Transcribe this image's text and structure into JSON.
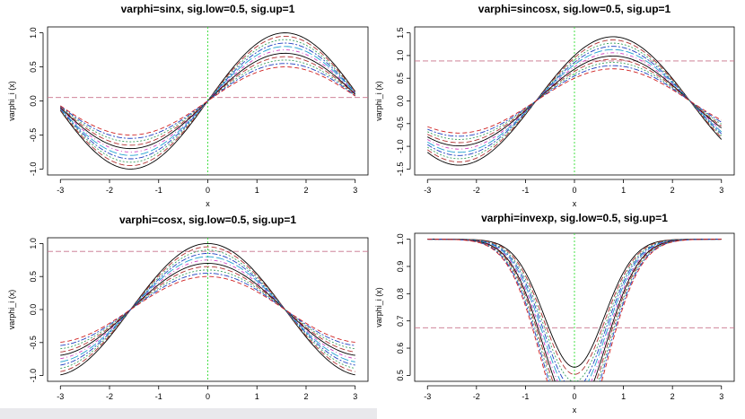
{
  "chart_data": [
    {
      "type": "line",
      "func": "sin",
      "title": "varphi=sinx, sig.low=0.5, sig.up=1",
      "xlabel": "x",
      "ylabel": "varphi_i (x)",
      "xlim": [
        -3,
        3
      ],
      "ylim": [
        -1.0,
        1.0
      ],
      "xticks": [
        "-3",
        "-2",
        "-1",
        "0",
        "1",
        "2",
        "3"
      ],
      "yticks": [
        "-1.0",
        "-0.5",
        "0.0",
        "0.5",
        "1.0"
      ],
      "hline": 0.05,
      "vline": 0,
      "sigmas": [
        1.0,
        0.95,
        0.9,
        0.85,
        0.8,
        0.75,
        0.7,
        0.65,
        0.6,
        0.55,
        0.5
      ]
    },
    {
      "type": "line",
      "func": "sincos",
      "title": "varphi=sincosx, sig.low=0.5, sig.up=1",
      "xlabel": "x",
      "ylabel": "varphi_i (x)",
      "xlim": [
        -3,
        3
      ],
      "ylim": [
        -1.5,
        1.5
      ],
      "xticks": [
        "-3",
        "-2",
        "-1",
        "0",
        "1",
        "2",
        "3"
      ],
      "yticks": [
        "-1.5",
        "-1.0",
        "-0.5",
        "0.0",
        "0.5",
        "1.0",
        "1.5"
      ],
      "hline": 0.88,
      "vline": 0,
      "sigmas": [
        1.0,
        0.95,
        0.9,
        0.85,
        0.8,
        0.75,
        0.7,
        0.65,
        0.6,
        0.55,
        0.5
      ]
    },
    {
      "type": "line",
      "func": "cos",
      "title": "varphi=cosx, sig.low=0.5, sig.up=1",
      "xlabel": "x",
      "ylabel": "varphi_i (x)",
      "xlim": [
        -3,
        3
      ],
      "ylim": [
        -1.0,
        1.0
      ],
      "xticks": [
        "-3",
        "-2",
        "-1",
        "0",
        "1",
        "2",
        "3"
      ],
      "yticks": [
        "-1.0",
        "-0.5",
        "0.0",
        "0.5",
        "1.0"
      ],
      "hline": 0.88,
      "vline": 0,
      "sigmas": [
        1.0,
        0.95,
        0.9,
        0.85,
        0.8,
        0.75,
        0.7,
        0.65,
        0.6,
        0.55,
        0.5
      ]
    },
    {
      "type": "line",
      "func": "invexp",
      "title": "varphi=invexp, sig.low=0.5, sig.up=1",
      "xlabel": "x",
      "ylabel": "varphi_i (x)",
      "xlim": [
        -3,
        3
      ],
      "ylim": [
        0.5,
        1.0
      ],
      "xticks": [
        "-3",
        "-2",
        "-1",
        "0",
        "1",
        "2",
        "3"
      ],
      "yticks": [
        "0.5",
        "0.6",
        "0.7",
        "0.8",
        "0.9",
        "1.0"
      ],
      "hline": 0.675,
      "vline": 0,
      "sigmas": [
        1.0,
        0.95,
        0.9,
        0.85,
        0.8,
        0.75,
        0.7,
        0.65,
        0.6,
        0.55,
        0.5
      ]
    }
  ],
  "colors": {
    "series": [
      "#000000",
      "#b03030",
      "#3aa060",
      "#2040c0",
      "#20a0d0",
      "#d040c0",
      "#000000",
      "#b03030",
      "#3aa060",
      "#2040c0",
      "#d02020"
    ],
    "hline": "#c8728a",
    "vline": "#33dd33"
  }
}
